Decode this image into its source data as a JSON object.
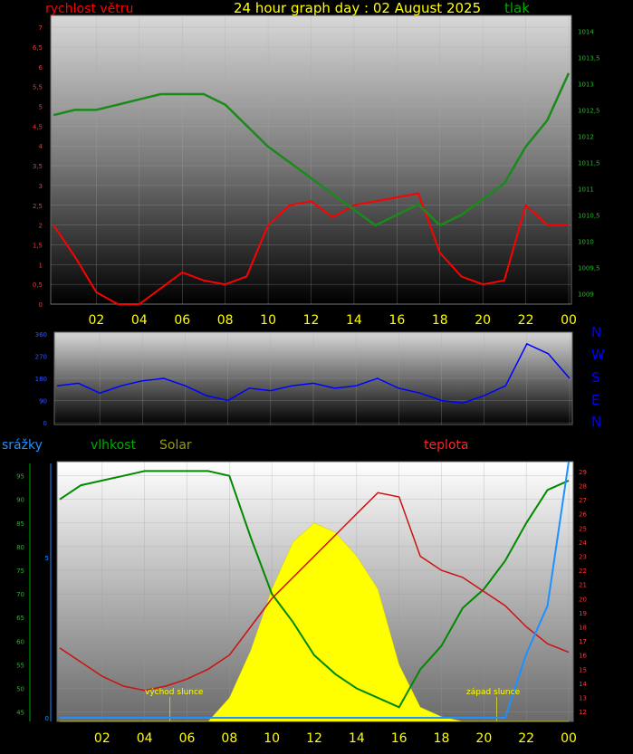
{
  "header": {
    "title": "24 hour graph day : 02 August 2025",
    "wind_label": "rychlost větru",
    "pressure_label": "tlak",
    "title_color": "#ffff00",
    "wind_color": "#ff0000",
    "pressure_color": "#00aa00"
  },
  "compass": {
    "letters": [
      "N",
      "W",
      "S",
      "E",
      "N"
    ],
    "color": "#0000ff"
  },
  "lower_labels": {
    "rain": "srážky",
    "humidity": "vlhkost",
    "solar": "Solar",
    "temperature": "teplota",
    "sunrise": "východ slunce",
    "sunset": "západ slunce",
    "rain_color": "#1e90ff",
    "humidity_color": "#00aa00",
    "solar_color": "#999900",
    "temperature_color": "#ff2222"
  },
  "chart_data": [
    {
      "type": "line",
      "panel": "wind-pressure",
      "x_tick_labels": [
        "02",
        "04",
        "06",
        "08",
        "10",
        "12",
        "14",
        "16",
        "18",
        "20",
        "22",
        "00"
      ],
      "y_left_ticks": [
        "0",
        "0,5",
        "1",
        "1,5",
        "2",
        "2,5",
        "3",
        "3,5",
        "4",
        "4,5",
        "5",
        "5,5",
        "6",
        "6,5",
        "7"
      ],
      "y_right_ticks": [
        "1009",
        "1009,5",
        "1010",
        "1010,5",
        "1011",
        "1011,5",
        "1012",
        "1012,5",
        "1013",
        "1013,5",
        "1014"
      ],
      "ylim_left": [
        0,
        7.3
      ],
      "ylim_right": [
        1008.8,
        1014.3
      ],
      "x_hours": [
        0,
        1,
        2,
        3,
        4,
        5,
        6,
        7,
        8,
        9,
        10,
        11,
        12,
        13,
        14,
        15,
        16,
        17,
        18,
        19,
        20,
        21,
        22,
        23,
        24
      ],
      "series": [
        {
          "name": "rychlost větru",
          "color": "#ff0000",
          "values": [
            2.0,
            1.2,
            0.3,
            0.0,
            0.0,
            0.4,
            0.8,
            0.6,
            0.5,
            0.7,
            2.0,
            2.5,
            2.6,
            2.2,
            2.5,
            2.6,
            2.7,
            2.8,
            1.3,
            0.7,
            0.5,
            0.6,
            2.5,
            2.0,
            2.0
          ]
        },
        {
          "name": "tlak",
          "color": "#1a8a1a",
          "values": [
            1012.4,
            1012.5,
            1012.5,
            1012.6,
            1012.7,
            1012.8,
            1012.8,
            1012.8,
            1012.6,
            1012.2,
            1011.8,
            1011.5,
            1011.2,
            1010.9,
            1010.6,
            1010.3,
            1010.5,
            1010.7,
            1010.3,
            1010.5,
            1010.8,
            1011.1,
            1011.8,
            1012.3,
            1013.2
          ]
        }
      ]
    },
    {
      "type": "line",
      "panel": "wind-direction",
      "y_ticks": [
        "0",
        "90",
        "180",
        "270",
        "360"
      ],
      "ylim": [
        0,
        360
      ],
      "x_hours": [
        0,
        1,
        2,
        3,
        4,
        5,
        6,
        7,
        8,
        9,
        10,
        11,
        12,
        13,
        14,
        15,
        16,
        17,
        18,
        19,
        20,
        21,
        22,
        23,
        24
      ],
      "series": [
        {
          "name": "",
          "color": "#0000ff",
          "values": [
            150,
            160,
            120,
            150,
            170,
            180,
            150,
            110,
            90,
            140,
            130,
            150,
            160,
            140,
            150,
            180,
            140,
            120,
            90,
            80,
            110,
            150,
            320,
            280,
            180
          ]
        }
      ]
    },
    {
      "type": "line",
      "panel": "rain-humidity-solar-temperature",
      "y_humidity_ticks": [
        "45",
        "50",
        "55",
        "60",
        "65",
        "70",
        "75",
        "80",
        "85",
        "90",
        "95"
      ],
      "y_rain_ticks": [
        "0",
        "5"
      ],
      "y_temp_ticks": [
        "12",
        "13",
        "14",
        "15",
        "16",
        "17",
        "18",
        "19",
        "20",
        "21",
        "22",
        "23",
        "24",
        "25",
        "26",
        "27",
        "28",
        "29"
      ],
      "ylim_humidity": [
        43,
        98
      ],
      "ylim_temp": [
        11.3,
        29.7
      ],
      "ylim_rain": [
        0,
        8
      ],
      "x_hours": [
        0,
        1,
        2,
        3,
        4,
        5,
        6,
        7,
        8,
        9,
        10,
        11,
        12,
        13,
        14,
        15,
        16,
        17,
        18,
        19,
        20,
        21,
        22,
        23,
        24
      ],
      "series": [
        {
          "name": "vlhkost",
          "color": "#008a00",
          "values": [
            90,
            93,
            94,
            95,
            96,
            96,
            96,
            96,
            95,
            82,
            70,
            64,
            57,
            53,
            50,
            48,
            46,
            54,
            59,
            67,
            71,
            77,
            85,
            92,
            94
          ]
        },
        {
          "name": "teplota",
          "color": "#cc1111",
          "values": [
            16.5,
            15.5,
            14.5,
            13.8,
            13.5,
            13.8,
            14.3,
            15.0,
            16.0,
            18.0,
            20.0,
            21.5,
            23.0,
            24.5,
            26.0,
            27.5,
            27.2,
            23.0,
            22.0,
            21.5,
            20.5,
            19.5,
            18.0,
            16.8,
            16.2
          ]
        },
        {
          "name": "Solar",
          "color": "#ffff00",
          "values": [
            0,
            0,
            0,
            0,
            0,
            0,
            0,
            0,
            5,
            15,
            28,
            38,
            42,
            40,
            35,
            28,
            12,
            3,
            1,
            0,
            0,
            0,
            0,
            0,
            0
          ]
        },
        {
          "name": "srážky",
          "color": "#1e90ff",
          "values": [
            0,
            0,
            0,
            0,
            0,
            0,
            0,
            0,
            0,
            0,
            0,
            0,
            0,
            0,
            0,
            0,
            0,
            0,
            0,
            0,
            0,
            0,
            2,
            3.5,
            8
          ]
        }
      ]
    }
  ]
}
